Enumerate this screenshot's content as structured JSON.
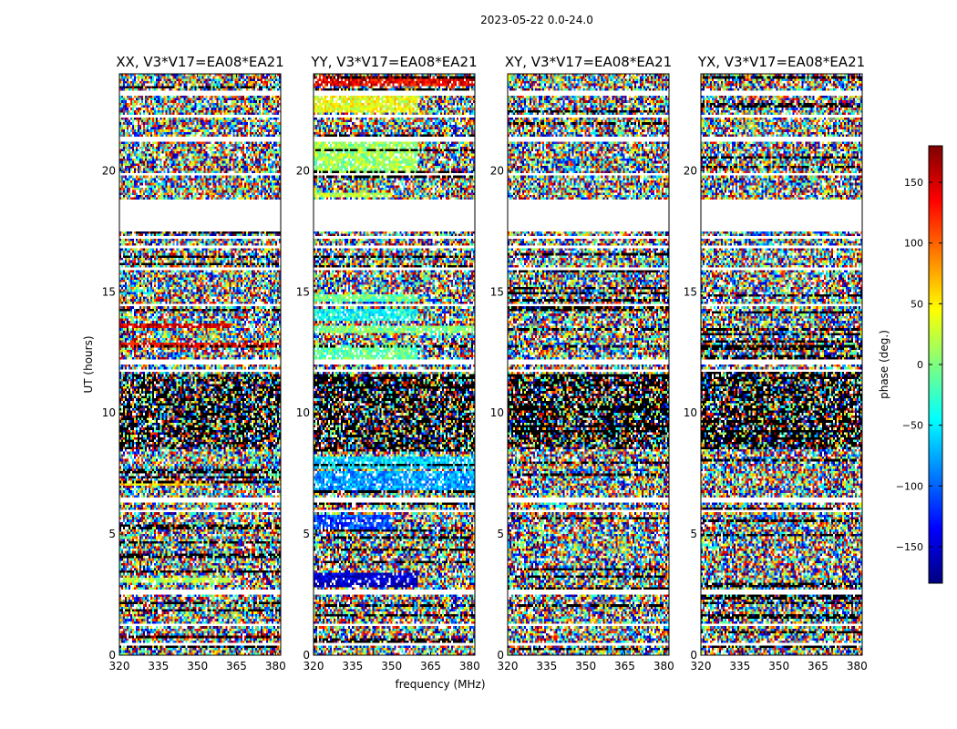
{
  "chart_data": {
    "type": "heatmap",
    "suptitle": "2023-05-22 0.0-24.0",
    "xlabel": "frequency (MHz)",
    "ylabel": "UT (hours)",
    "xlim": [
      320,
      382
    ],
    "ylim": [
      0,
      24
    ],
    "xticks": [
      320,
      335,
      350,
      365,
      380
    ],
    "yticks": [
      0,
      5,
      10,
      15,
      20
    ],
    "colorbar": {
      "label": "phase (deg.)",
      "range": [
        -180,
        180
      ],
      "ticks": [
        150,
        100,
        50,
        0,
        -50,
        -100,
        -150
      ],
      "tick_labels": [
        "150",
        "100",
        "50",
        "0",
        "−50",
        "−100",
        "−150"
      ],
      "colormap": "jet",
      "colors": [
        "#00007f",
        "#0000ff",
        "#007fff",
        "#00ffff",
        "#7fff7f",
        "#ffff00",
        "#ff7f00",
        "#ff0000",
        "#7f0000"
      ]
    },
    "gaps_hours": [
      [
        23.1,
        23.3
      ],
      [
        22.2,
        22.3
      ],
      [
        21.2,
        21.4
      ],
      [
        19.8,
        19.9
      ],
      [
        17.5,
        18.8
      ],
      [
        17.25,
        17.3
      ],
      [
        16.8,
        16.9
      ],
      [
        15.9,
        16.0
      ],
      [
        14.4,
        14.5
      ],
      [
        12.0,
        12.2
      ],
      [
        11.7,
        11.8
      ],
      [
        6.35,
        6.5
      ],
      [
        5.9,
        6.05
      ],
      [
        2.5,
        2.65
      ],
      [
        1.25,
        1.3
      ],
      [
        0.4,
        0.45
      ]
    ],
    "dark_bands_hours": [
      [
        8.5,
        11.6
      ],
      [
        12.7,
        12.8
      ]
    ],
    "panels": [
      {
        "title": "XX, V3*V17=EA08*EA21",
        "bias_bands": [
          {
            "hours": [
              13.55,
              13.75
            ],
            "freq": [
              320,
              363
            ],
            "phase": 150
          },
          {
            "hours": [
              12.75,
              12.9
            ],
            "freq": [
              320,
              380
            ],
            "phase": 140
          },
          {
            "hours": [
              7.0,
              7.2
            ],
            "freq": [
              320,
              355
            ],
            "phase": 60
          },
          {
            "hours": [
              3.0,
              3.2
            ],
            "freq": [
              320,
              363
            ],
            "phase": 20
          },
          {
            "hours": [
              0.75,
              0.85
            ],
            "freq": [
              320,
              382
            ],
            "phase": 170
          }
        ]
      },
      {
        "title": "YY, V3*V17=EA08*EA21",
        "bias_bands": [
          {
            "hours": [
              23.5,
              23.9
            ],
            "freq": [
              320,
              382
            ],
            "phase": 140
          },
          {
            "hours": [
              22.4,
              23.1
            ],
            "freq": [
              320,
              360
            ],
            "phase": 40
          },
          {
            "hours": [
              19.8,
              21.3
            ],
            "freq": [
              320,
              360
            ],
            "phase": 10
          },
          {
            "hours": [
              18.9,
              19.1
            ],
            "freq": [
              320,
              350
            ],
            "phase": 20
          },
          {
            "hours": [
              14.6,
              14.9
            ],
            "freq": [
              320,
              360
            ],
            "phase": -10
          },
          {
            "hours": [
              13.8,
              14.3
            ],
            "freq": [
              320,
              360
            ],
            "phase": -40
          },
          {
            "hours": [
              13.3,
              13.6
            ],
            "freq": [
              320,
              382
            ],
            "phase": 0
          },
          {
            "hours": [
              12.2,
              12.8
            ],
            "freq": [
              320,
              360
            ],
            "phase": -10
          },
          {
            "hours": [
              6.8,
              7.6
            ],
            "freq": [
              320,
              382
            ],
            "phase": -80
          },
          {
            "hours": [
              7.7,
              8.2
            ],
            "freq": [
              320,
              382
            ],
            "phase": -60
          },
          {
            "hours": [
              3.0,
              3.4
            ],
            "freq": [
              320,
              360
            ],
            "phase": -150
          },
          {
            "hours": [
              2.8,
              3.0
            ],
            "freq": [
              320,
              360
            ],
            "phase": -170
          },
          {
            "hours": [
              5.2,
              5.8
            ],
            "freq": [
              320,
              350
            ],
            "phase": -110
          }
        ]
      },
      {
        "title": "XY, V3*V17=EA08*EA21",
        "bias_bands": []
      },
      {
        "title": "YX, V3*V17=EA08*EA21",
        "bias_bands": []
      }
    ]
  }
}
